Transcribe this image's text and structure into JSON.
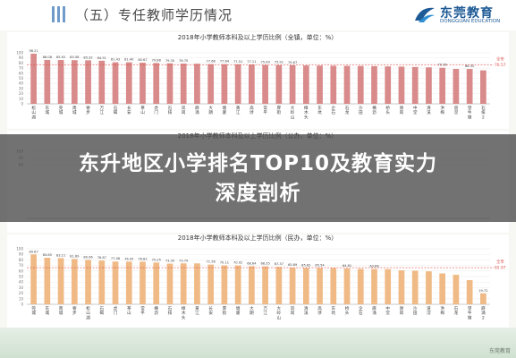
{
  "header": {
    "title": "（五）专任教师学历情况",
    "logo_name": "东莞教育",
    "logo_sub": "DONGGUAN EDUCATION",
    "accent_color": "#1d5a96"
  },
  "headline": {
    "line1": "东升地区小学排名TOP10及教育实力",
    "line2": "深度剖析"
  },
  "footer": {
    "watermark": "东莞教育"
  },
  "chart_data": [
    {
      "type": "bar",
      "title": "2018年小学教师本科及以上学历比例（全镇，单位：%）",
      "bar_color": "#d98a8a",
      "categories": [
        "松山湖",
        "东城",
        "莞城",
        "南城",
        "寮步",
        "万江",
        "石碣",
        "长安",
        "茶山",
        "虎门",
        "石排",
        "凤岗",
        "麻涌",
        "大朗",
        "塘厦",
        "黄江",
        "高埗",
        "常平",
        "厚街",
        "大岭山",
        "樟木头",
        "东坑",
        "企石",
        "石龙",
        "沙田",
        "横沥",
        "桥头",
        "谢岗",
        "中堂",
        "清溪",
        "洪梅",
        "道滘",
        "望牛墩",
        "石排2"
      ],
      "values": [
        98.21,
        86.08,
        85.92,
        85.58,
        85.32,
        84.51,
        81.43,
        81.4,
        80.67,
        79.88,
        79.3,
        78.7,
        78.4,
        77.68,
        77.64,
        77.51,
        77.11,
        75.99,
        75.91,
        75.67,
        75.2,
        74.93,
        74.62,
        74.4,
        74.2,
        73.8,
        73.37,
        73.0,
        72.22,
        71.5,
        70.66,
        68.42,
        68.32,
        65.54
      ],
      "value_labels": [
        "98.21",
        "86.08",
        "85.92",
        "85.58",
        "85.32",
        "84.51",
        "81.43",
        "81.40",
        "80.67",
        "79.88",
        "79.30",
        "78.70",
        "",
        "77.68",
        "77.64",
        "77.51",
        "77.11",
        "75.99",
        "75.91",
        "75.67",
        "",
        "",
        "",
        "",
        "",
        "",
        "",
        "",
        "",
        "",
        "70.66",
        "",
        "68.32",
        ""
      ],
      "reference": {
        "label": "全市",
        "value": 76.57,
        "value_label": "76.57"
      },
      "ylim": [
        0,
        100
      ],
      "y_ticks": [
        "100",
        "90",
        "80",
        "70",
        "60",
        "50",
        "40",
        "30",
        "20",
        "10",
        "0"
      ]
    },
    {
      "type": "bar",
      "title": "2018年小学教师本科及以上学历比例（公办，单位：%）",
      "bar_color": "#d98a8a",
      "categories": [],
      "values": [],
      "reference": {
        "label": "全市",
        "value": 0,
        "value_label": ""
      },
      "ylim": [
        0,
        100
      ],
      "y_ticks": [
        "100",
        "90",
        "80"
      ]
    },
    {
      "type": "bar",
      "title": "2018年小学教师本科及以上学历比例（民办，单位：%）",
      "bar_color": "#f0ba86",
      "categories": [
        "莞城",
        "东城",
        "南城",
        "寮步",
        "松山湖",
        "石碣",
        "虎门",
        "茶山",
        "常平",
        "横沥",
        "石排",
        "樟木头",
        "黄江",
        "长安",
        "厚街",
        "塘厦",
        "大朗",
        "万江",
        "大岭山",
        "凤岗",
        "清溪",
        "高埗",
        "东坑",
        "桥头",
        "企石",
        "麻涌",
        "中堂",
        "谢岗",
        "沙田",
        "道滘",
        "洪梅",
        "石龙",
        "望牛墩",
        "麻涌2"
      ],
      "values": [
        89.87,
        83.85,
        83.21,
        81.69,
        80.06,
        78.87,
        77.08,
        76.95,
        76.82,
        75.25,
        73.3,
        73.79,
        73.79,
        71.56,
        70.11,
        70.02,
        68.64,
        68.35,
        67.37,
        65.89,
        65.62,
        65.54,
        65.36,
        64.61,
        63.85,
        63.66,
        63.4,
        61.23,
        60.64,
        59.42,
        55.69,
        53.2,
        43.56,
        19.72
      ],
      "value_labels": [
        "89.87",
        "83.85",
        "83.21",
        "81.69",
        "80.06",
        "78.87",
        "77.08",
        "76.95",
        "76.82",
        "75.25",
        "73.30",
        "73.79",
        "",
        "71.56",
        "70.11",
        "70.02",
        "68.64",
        "68.35",
        "67.37",
        "65.89",
        "65.62",
        "65.54",
        "",
        "64.61",
        "",
        "63.66",
        "",
        "",
        "",
        "",
        "",
        "",
        "",
        "19.72"
      ],
      "reference": {
        "label": "全市",
        "value": 65.97,
        "value_label": "65.97"
      },
      "ylim": [
        0,
        100
      ],
      "y_ticks": [
        "100",
        "90",
        "80",
        "70",
        "60",
        "50",
        "40",
        "30",
        "20",
        "10",
        "0"
      ]
    }
  ]
}
